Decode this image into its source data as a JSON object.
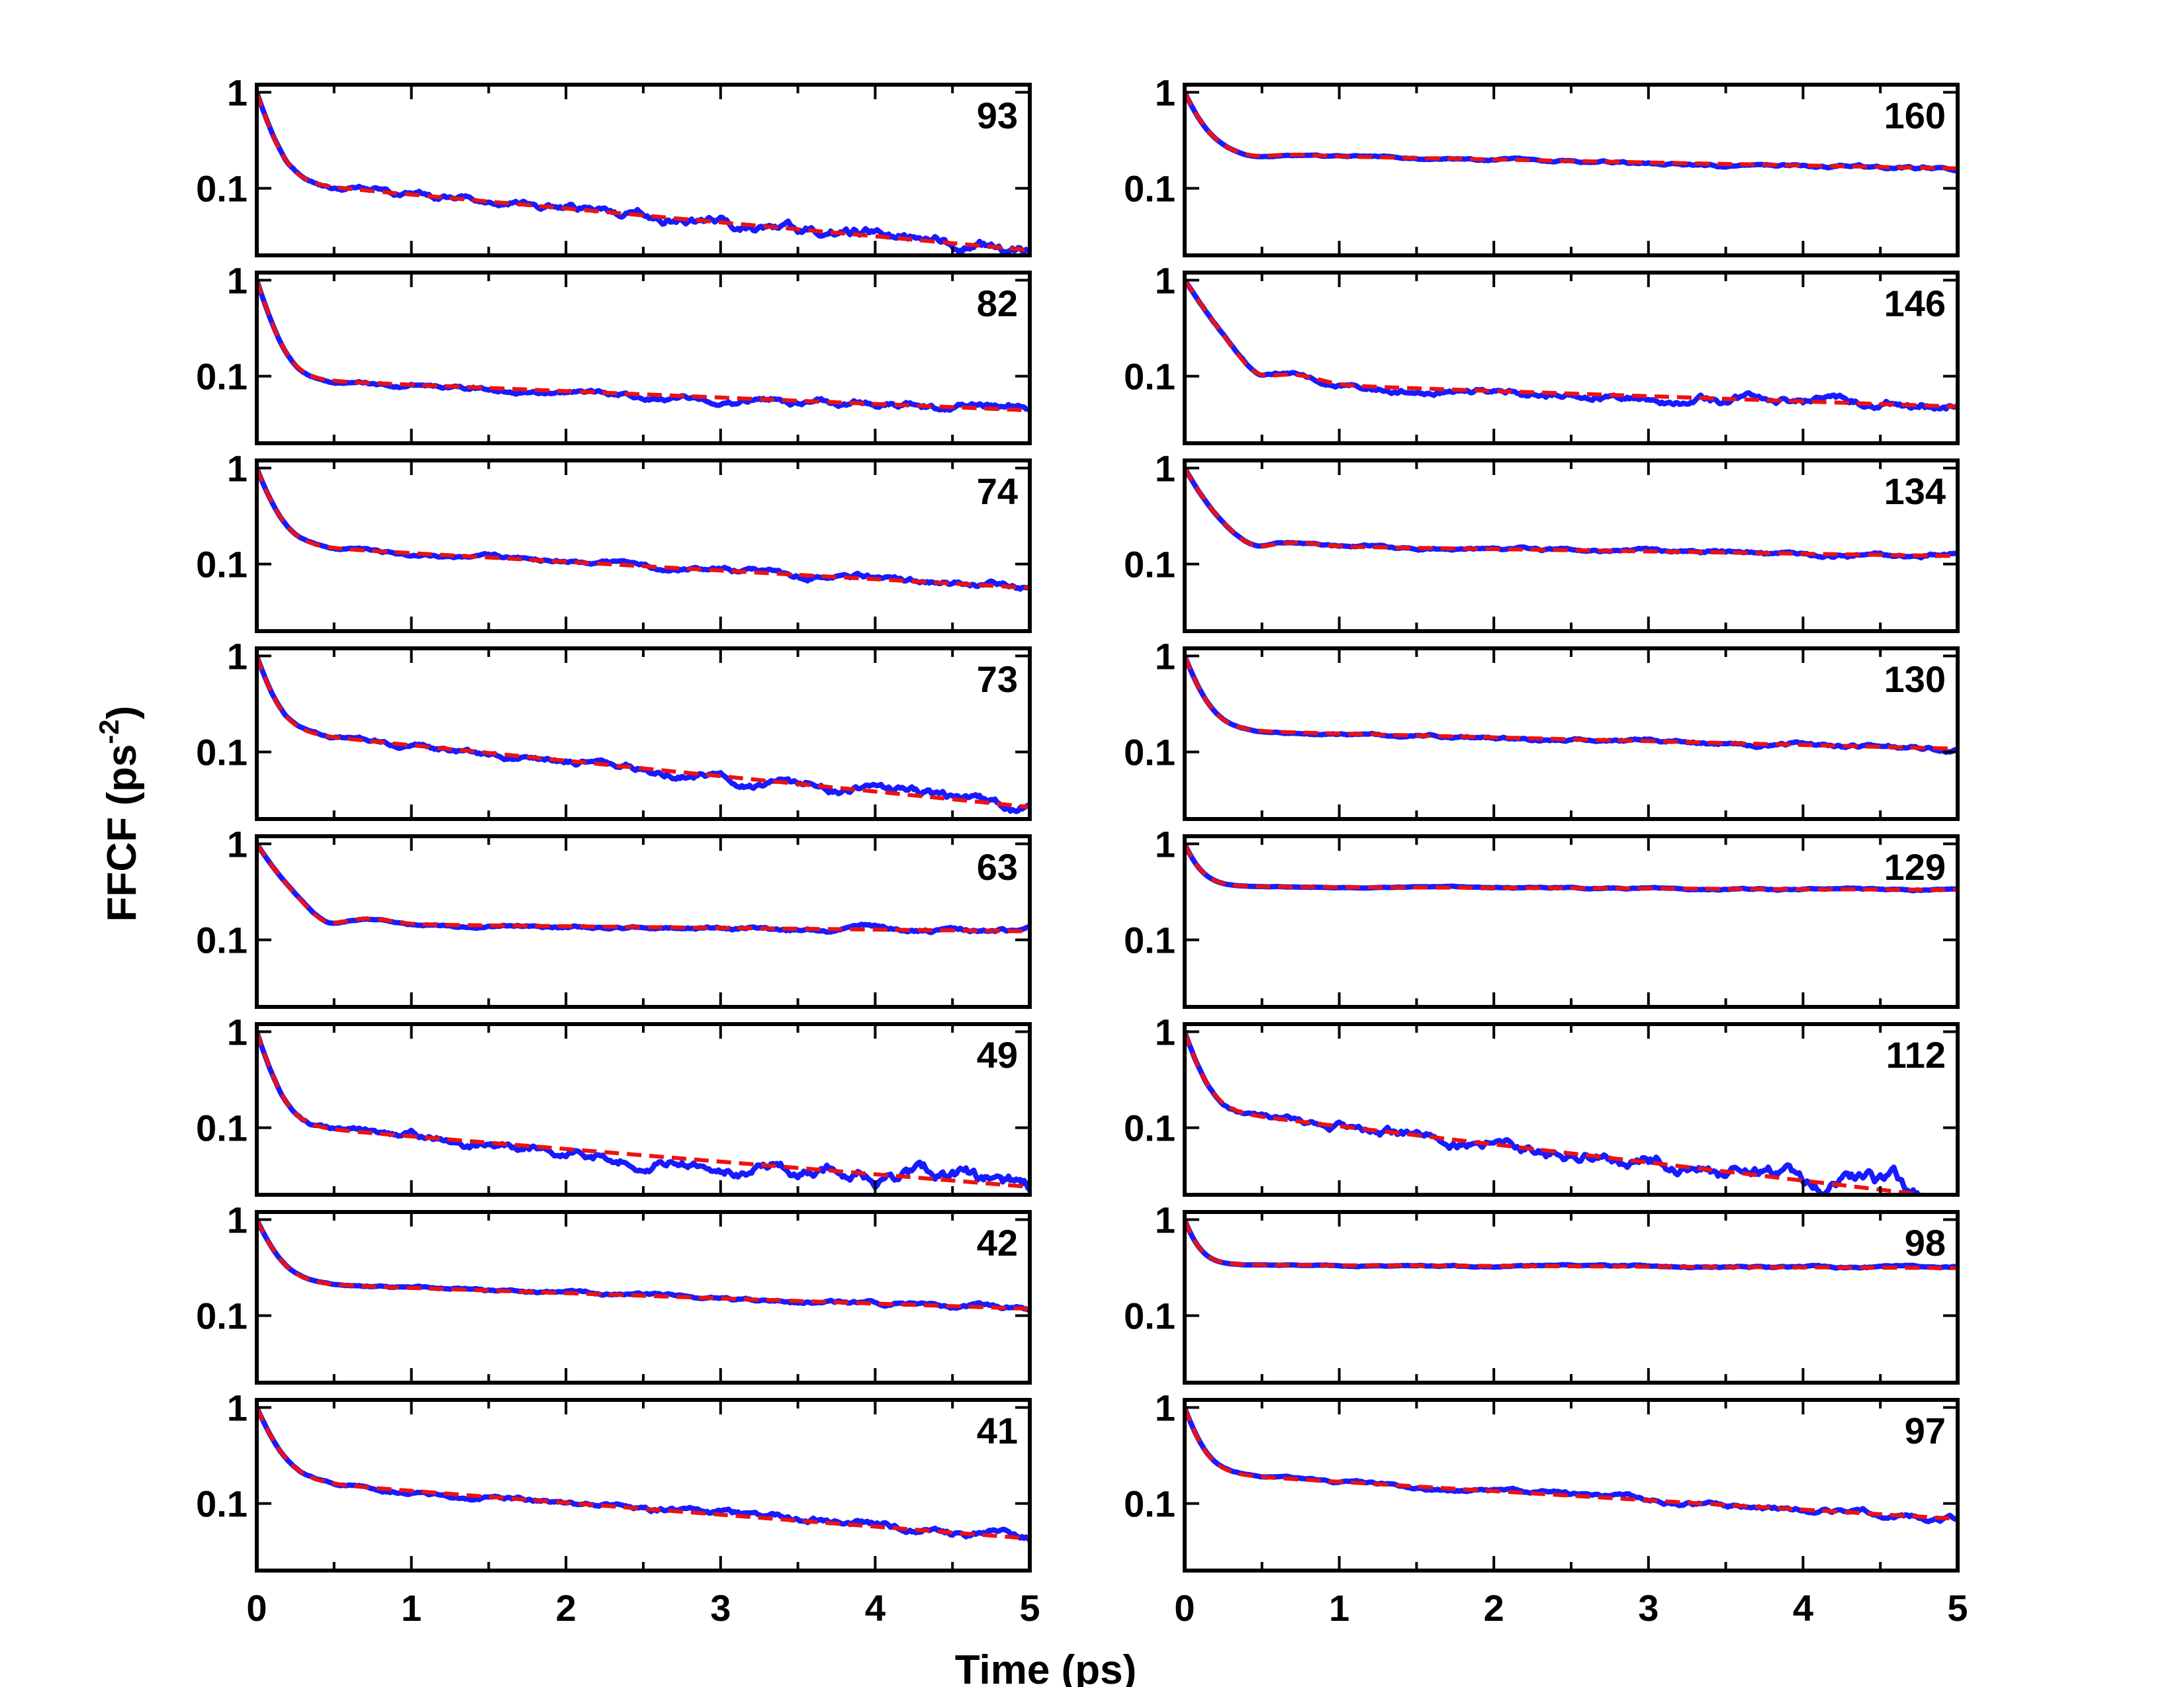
{
  "chart_data": {
    "type": "line",
    "layout": "2 columns x 8 rows of panels, shared x axis",
    "xlabel": "Time (ps)",
    "ylabel": "FFCF (ps",
    "ylabel_superscript": "-2",
    "ylabel_close": ")",
    "xlim": [
      0,
      5
    ],
    "xticks": [
      "0",
      "1",
      "2",
      "3",
      "4",
      "5"
    ],
    "yscale": "log",
    "ylim": [
      0.02,
      1.2
    ],
    "ytick_labels": [
      "1",
      "0.1"
    ],
    "ytick_values": [
      1,
      0.1
    ],
    "grid": false,
    "series_styles": {
      "simulation": {
        "color": "#1a1aff",
        "style": "solid"
      },
      "fit": {
        "color": "#ee1111",
        "style": "dashed"
      }
    },
    "panels": [
      {
        "label": "93",
        "column": 0,
        "row": 0,
        "fast_tau": 0.08,
        "plateau": 0.12,
        "slow_tau": 3.0,
        "osc": 0,
        "noise": 0.12
      },
      {
        "label": "82",
        "column": 0,
        "row": 1,
        "fast_tau": 0.08,
        "plateau": 0.095,
        "slow_tau": 6.5,
        "osc": 0,
        "noise": 0.07
      },
      {
        "label": "74",
        "column": 0,
        "row": 2,
        "fast_tau": 0.09,
        "plateau": 0.16,
        "slow_tau": 4.8,
        "osc": 0,
        "noise": 0.06
      },
      {
        "label": "73",
        "column": 0,
        "row": 3,
        "fast_tau": 0.08,
        "plateau": 0.17,
        "slow_tau": 2.7,
        "osc": 0,
        "noise": 0.1
      },
      {
        "label": "63",
        "column": 0,
        "row": 4,
        "fast_tau": 0.15,
        "plateau": 0.15,
        "slow_tau": 25,
        "osc": 0.45,
        "noise": 0.04
      },
      {
        "label": "49",
        "column": 0,
        "row": 5,
        "fast_tau": 0.08,
        "plateau": 0.11,
        "slow_tau": 3.3,
        "osc": 0,
        "noise": 0.14
      },
      {
        "label": "42",
        "column": 0,
        "row": 6,
        "fast_tau": 0.1,
        "plateau": 0.22,
        "slow_tau": 8.0,
        "osc": 0,
        "noise": 0.04
      },
      {
        "label": "41",
        "column": 0,
        "row": 7,
        "fast_tau": 0.1,
        "plateau": 0.18,
        "slow_tau": 3.5,
        "osc": 0,
        "noise": 0.07
      },
      {
        "label": "160",
        "column": 1,
        "row": 0,
        "fast_tau": 0.1,
        "plateau": 0.23,
        "slow_tau": 14,
        "osc": 0.1,
        "noise": 0.03
      },
      {
        "label": "146",
        "column": 1,
        "row": 1,
        "fast_tau": 0.16,
        "plateau": 0.09,
        "slow_tau": 8.0,
        "osc": 0.6,
        "noise": 0.09
      },
      {
        "label": "134",
        "column": 1,
        "row": 2,
        "fast_tau": 0.13,
        "plateau": 0.16,
        "slow_tau": 18,
        "osc": 0.3,
        "noise": 0.04
      },
      {
        "label": "130",
        "column": 1,
        "row": 3,
        "fast_tau": 0.09,
        "plateau": 0.17,
        "slow_tau": 11,
        "osc": 0,
        "noise": 0.04
      },
      {
        "label": "129",
        "column": 1,
        "row": 4,
        "fast_tau": 0.08,
        "plateau": 0.36,
        "slow_tau": 60,
        "osc": 0,
        "noise": 0.015
      },
      {
        "label": "112",
        "column": 1,
        "row": 5,
        "fast_tau": 0.08,
        "plateau": 0.16,
        "slow_tau": 2.3,
        "osc": 0,
        "noise": 0.16
      },
      {
        "label": "98",
        "column": 1,
        "row": 6,
        "fast_tau": 0.07,
        "plateau": 0.34,
        "slow_tau": 60,
        "osc": 0,
        "noise": 0.02
      },
      {
        "label": "97",
        "column": 1,
        "row": 7,
        "fast_tau": 0.08,
        "plateau": 0.21,
        "slow_tau": 4.5,
        "osc": 0,
        "noise": 0.05
      }
    ]
  }
}
